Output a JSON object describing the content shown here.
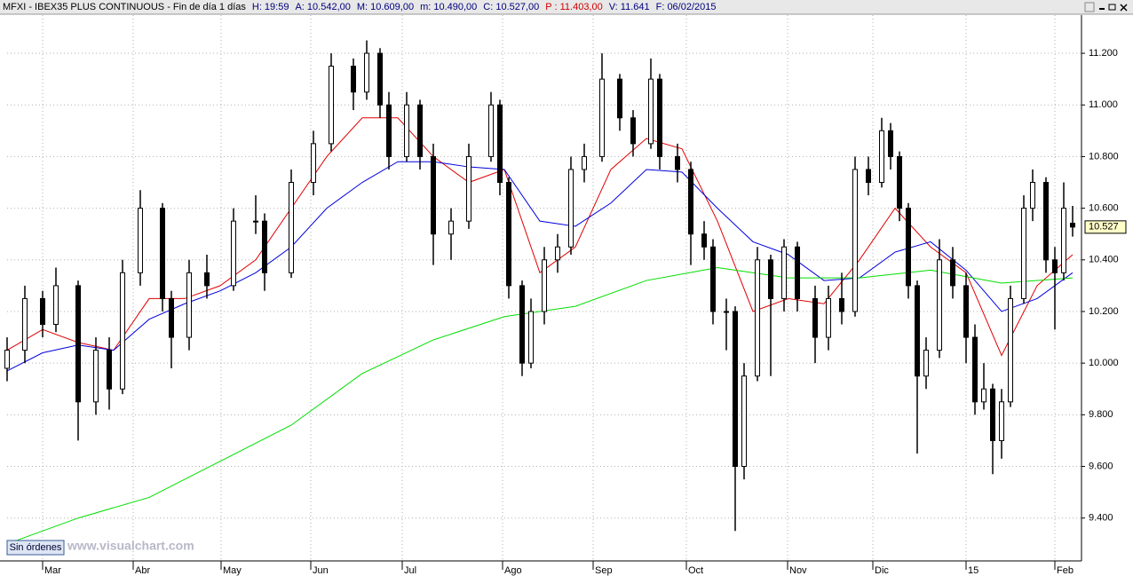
{
  "chart_data": {
    "type": "candlestick",
    "header": [
      {
        "text": "MFXI - IBEX35 PLUS CONTINUOUS - Fin de día 1 días",
        "color": "#000000"
      },
      {
        "text": "H: 19:59",
        "color": "#000080"
      },
      {
        "text": "A: 10.542,00",
        "color": "#000080"
      },
      {
        "text": "M: 10.609,00",
        "color": "#000080"
      },
      {
        "text": "m: 10.490,00",
        "color": "#000080"
      },
      {
        "text": "C: 10.527,00",
        "color": "#000080"
      },
      {
        "text": "P : 11.403,00",
        "color": "#cc0000"
      },
      {
        "text": "V: 11.641",
        "color": "#000080"
      },
      {
        "text": "F: 06/02/2015",
        "color": "#000080"
      }
    ],
    "watermark": "www.visualchart.com",
    "button": "Sin órdenes",
    "xlim": [
      0,
      242
    ],
    "xticks": [
      {
        "value": 8,
        "label": "Mar"
      },
      {
        "value": 28.4,
        "label": "Abr"
      },
      {
        "value": 48.2,
        "label": "May"
      },
      {
        "value": 68.4,
        "label": "Jun"
      },
      {
        "value": 89,
        "label": "Jul"
      },
      {
        "value": 111.6,
        "label": "Ago"
      },
      {
        "value": 132,
        "label": "Sep"
      },
      {
        "value": 153,
        "label": "Oct"
      },
      {
        "value": 175.8,
        "label": "Nov"
      },
      {
        "value": 195,
        "label": "Dic"
      },
      {
        "value": 216,
        "label": "15"
      },
      {
        "value": 236,
        "label": "Feb"
      }
    ],
    "ylim": [
      9234,
      11348
    ],
    "yticks": [
      {
        "value": 9400,
        "label": "9.400"
      },
      {
        "value": 9600,
        "label": "9.600"
      },
      {
        "value": 9800,
        "label": "9.800"
      },
      {
        "value": 10000,
        "label": "10.000"
      },
      {
        "value": 10200,
        "label": "10.200"
      },
      {
        "value": 10400,
        "label": "10.400"
      },
      {
        "value": 10600,
        "label": "10.600"
      },
      {
        "value": 10800,
        "label": "10.800"
      },
      {
        "value": 11000,
        "label": "11.000"
      },
      {
        "value": 11200,
        "label": "11.200"
      }
    ],
    "grid": true,
    "candles": {
      "x": [
        0,
        4,
        8,
        11,
        16,
        20,
        23,
        26,
        30,
        35,
        37,
        41,
        45,
        51,
        56,
        58,
        64,
        69,
        73,
        78,
        81,
        84,
        86,
        90,
        93,
        96,
        100,
        104,
        109,
        111,
        113,
        116,
        118,
        121,
        124,
        127,
        130,
        134,
        138,
        141,
        145,
        147,
        151,
        154,
        157,
        159,
        162,
        164,
        166,
        169,
        172,
        175,
        178,
        182,
        185,
        188,
        191,
        194,
        197,
        199,
        201,
        203,
        205,
        207,
        210,
        213,
        216,
        218,
        220,
        222,
        224,
        226,
        229,
        231,
        234,
        236,
        238,
        240
      ],
      "open": [
        9980,
        10050,
        10250,
        10150,
        10300,
        9850,
        10050,
        9900,
        10350,
        10600,
        10250,
        10100,
        10350,
        10300,
        10550,
        10550,
        10350,
        10700,
        10850,
        11150,
        11050,
        11200,
        11000,
        10800,
        11000,
        10800,
        10500,
        10550,
        10800,
        11000,
        10700,
        10300,
        10000,
        10200,
        10400,
        10450,
        10750,
        10800,
        11100,
        10950,
        10850,
        11100,
        10800,
        10750,
        10500,
        10450,
        10200,
        10200,
        9600,
        9950,
        10400,
        10250,
        10450,
        10250,
        10100,
        10250,
        10200,
        10750,
        10700,
        10900,
        10800,
        10600,
        10300,
        9950,
        10050,
        10400,
        10300,
        10100,
        9850,
        9900,
        9700,
        9850,
        10250,
        10600,
        10700,
        10400,
        10350,
        10542
      ],
      "high": [
        10100,
        10300,
        10280,
        10370,
        10320,
        10100,
        10100,
        10400,
        10670,
        10620,
        10280,
        10400,
        10420,
        10600,
        10650,
        10580,
        10750,
        10900,
        11200,
        11180,
        11250,
        11220,
        11050,
        11050,
        11020,
        10850,
        10600,
        10850,
        11050,
        11020,
        10720,
        10320,
        10250,
        10450,
        10500,
        10800,
        10850,
        11200,
        11120,
        10980,
        11180,
        11120,
        10850,
        10780,
        10550,
        10480,
        10250,
        10220,
        10000,
        10450,
        10420,
        10480,
        10470,
        10300,
        10300,
        10350,
        10800,
        10800,
        10950,
        10930,
        10820,
        10620,
        10320,
        10100,
        10480,
        10450,
        10350,
        10150,
        10000,
        9920,
        9900,
        10300,
        10650,
        10750,
        10720,
        10450,
        10700,
        10609
      ],
      "low": [
        9930,
        10000,
        10100,
        10120,
        9700,
        9800,
        9820,
        9880,
        10300,
        10200,
        9980,
        10050,
        10250,
        10280,
        10500,
        10280,
        10330,
        10650,
        10820,
        10980,
        11020,
        10950,
        10750,
        10780,
        10750,
        10380,
        10400,
        10520,
        10780,
        10650,
        10250,
        9950,
        9980,
        10150,
        10350,
        10420,
        10700,
        10780,
        10900,
        10800,
        10830,
        10750,
        10700,
        10380,
        10400,
        10150,
        10050,
        9350,
        9550,
        9930,
        9950,
        10200,
        10200,
        10000,
        10050,
        10150,
        10180,
        10650,
        10680,
        10750,
        10550,
        10250,
        9650,
        9900,
        10020,
        10250,
        10000,
        9800,
        9820,
        9570,
        9630,
        9830,
        10230,
        10550,
        10350,
        10130,
        10320,
        10490
      ],
      "close": [
        10050,
        10250,
        10150,
        10300,
        9850,
        10050,
        9900,
        10350,
        10600,
        10250,
        10100,
        10350,
        10300,
        10550,
        10550,
        10350,
        10700,
        10850,
        11150,
        11050,
        11200,
        11000,
        10800,
        11000,
        10800,
        10500,
        10550,
        10800,
        11000,
        10700,
        10300,
        10000,
        10200,
        10400,
        10450,
        10750,
        10800,
        11100,
        10950,
        10850,
        11100,
        10800,
        10750,
        10500,
        10450,
        10200,
        10200,
        9600,
        9950,
        10400,
        10250,
        10450,
        10250,
        10100,
        10250,
        10200,
        10750,
        10700,
        10900,
        10800,
        10600,
        10300,
        9950,
        10050,
        10400,
        10300,
        10100,
        9850,
        9900,
        9700,
        9850,
        10250,
        10600,
        10700,
        10400,
        10350,
        10600,
        10527
      ],
      "last_label": "10.527"
    },
    "lines": [
      {
        "color": "#e00000",
        "x": [
          0,
          8,
          16,
          24,
          32,
          40,
          48,
          56,
          64,
          72,
          80,
          88,
          96,
          104,
          112,
          120,
          128,
          136,
          144,
          152,
          160,
          168,
          176,
          184,
          192,
          200,
          208,
          216,
          224,
          232,
          240
        ],
        "values": [
          10050,
          10130,
          10080,
          10050,
          10250,
          10250,
          10300,
          10400,
          10600,
          10800,
          10950,
          10950,
          10800,
          10700,
          10750,
          10350,
          10450,
          10750,
          10870,
          10830,
          10550,
          10200,
          10250,
          10230,
          10400,
          10600,
          10450,
          10350,
          10030,
          10300,
          10420
        ]
      },
      {
        "color": "#0000dd",
        "x": [
          0,
          8,
          16,
          24,
          32,
          40,
          48,
          56,
          64,
          72,
          80,
          88,
          96,
          104,
          112,
          120,
          128,
          136,
          144,
          152,
          160,
          168,
          176,
          184,
          192,
          200,
          208,
          216,
          224,
          232,
          240
        ],
        "values": [
          9970,
          10040,
          10070,
          10050,
          10170,
          10230,
          10280,
          10350,
          10450,
          10600,
          10700,
          10780,
          10780,
          10760,
          10750,
          10550,
          10530,
          10620,
          10750,
          10740,
          10600,
          10470,
          10420,
          10320,
          10330,
          10430,
          10470,
          10360,
          10200,
          10250,
          10350
        ]
      },
      {
        "color": "#00dd00",
        "x": [
          0,
          16,
          32,
          48,
          64,
          80,
          96,
          112,
          128,
          144,
          160,
          176,
          192,
          208,
          224,
          240
        ],
        "values": [
          9300,
          9400,
          9480,
          9620,
          9760,
          9960,
          10090,
          10180,
          10220,
          10320,
          10370,
          10330,
          10330,
          10360,
          10310,
          10330
        ]
      }
    ]
  }
}
